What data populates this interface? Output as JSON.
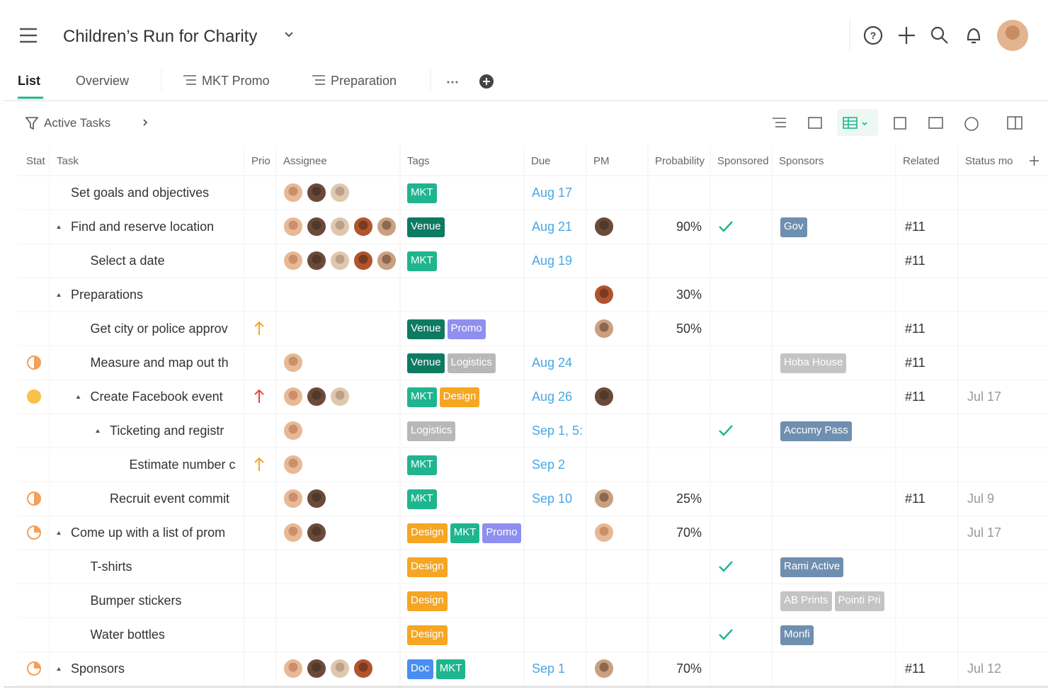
{
  "header": {
    "title": "Children’s Run for Charity"
  },
  "tabs": [
    "List",
    "Overview",
    "MKT Promo",
    "Preparation"
  ],
  "filter": "Active Tasks",
  "table": {
    "columns": [
      "Stat",
      "Task",
      "Prio",
      "Assignee",
      "Tags",
      "Due",
      "PM",
      "Probability",
      "Sponsored",
      "Sponsors",
      "Related",
      "Status mo"
    ],
    "rows": [
      {
        "task": "Set goals and objectives",
        "level": 1,
        "expand": false,
        "assignees": 3,
        "tags": [
          {
            "text": "MKT",
            "color": "#1fb58f"
          }
        ],
        "due": "Aug 17"
      },
      {
        "task": "Find and reserve location",
        "level": 1,
        "expand": true,
        "assignees": 5,
        "tags": [
          {
            "text": "Venue",
            "color": "#0e7a62"
          }
        ],
        "due": "Aug 21",
        "pm": true,
        "probability": "90%",
        "sponsored": true,
        "sponsors": [
          {
            "text": "Gov",
            "color": "#6f8fb0"
          }
        ],
        "related": "#11"
      },
      {
        "task": "Select a date",
        "level": 2,
        "expand": false,
        "assignees": 5,
        "tags": [
          {
            "text": "MKT",
            "color": "#1fb58f"
          }
        ],
        "due": "Aug 19",
        "related": "#11"
      },
      {
        "task": "Preparations",
        "level": 1,
        "expand": true,
        "pm": true,
        "probability": "30%"
      },
      {
        "task": "Get city or police approv",
        "level": 2,
        "expand": false,
        "priority": "#f5a623",
        "tags": [
          {
            "text": "Venue",
            "color": "#0e7a62"
          },
          {
            "text": "Promo",
            "color": "#8f8ff0"
          }
        ],
        "pm": true,
        "probability": "50%",
        "related": "#11"
      },
      {
        "task": "Measure and map out th",
        "level": 2,
        "expand": false,
        "status": 0.5,
        "assignees": 1,
        "tags": [
          {
            "text": "Venue",
            "color": "#0e7a62"
          },
          {
            "text": "Logistics",
            "color": "#b8b8b8"
          }
        ],
        "due": "Aug 24",
        "sponsors": [
          {
            "text": "Hoba House",
            "color": "#c4c4c4"
          }
        ],
        "related": "#11"
      },
      {
        "task": "Create Facebook event",
        "level": 2,
        "expand": true,
        "status": 1,
        "priority": "#e8463d",
        "assignees": 3,
        "tags": [
          {
            "text": "MKT",
            "color": "#1fb58f"
          },
          {
            "text": "Design",
            "color": "#f5a623"
          }
        ],
        "due": "Aug 26",
        "pm": true,
        "related": "#11",
        "status_modified": "Jul 17"
      },
      {
        "task": "Ticketing and registr",
        "level": 3,
        "expand": true,
        "assignees": 1,
        "tags": [
          {
            "text": "Logistics",
            "color": "#b8b8b8"
          }
        ],
        "due": "Sep 1, 5:",
        "sponsored": true,
        "sponsors": [
          {
            "text": "Accumy Pass",
            "color": "#6f8fb0"
          }
        ]
      },
      {
        "task": "Estimate number c",
        "level": 4,
        "expand": false,
        "priority": "#f5a623",
        "assignees": 1,
        "tags": [
          {
            "text": "MKT",
            "color": "#1fb58f"
          }
        ],
        "due": "Sep 2"
      },
      {
        "task": "Recruit event commit",
        "level": 3,
        "expand": false,
        "status": 0.5,
        "assignees": 2,
        "tags": [
          {
            "text": "MKT",
            "color": "#1fb58f"
          }
        ],
        "due": "Sep 10",
        "pm": true,
        "probability": "25%",
        "related": "#11",
        "status_modified": "Jul 9"
      },
      {
        "task": "Come up with a list of prom",
        "level": 1,
        "expand": true,
        "status": 0.25,
        "assignees": 2,
        "tags": [
          {
            "text": "Design",
            "color": "#f5a623"
          },
          {
            "text": "MKT",
            "color": "#1fb58f"
          },
          {
            "text": "Promo",
            "color": "#8f8ff0"
          }
        ],
        "pm": true,
        "probability": "70%",
        "status_modified": "Jul 17"
      },
      {
        "task": "T-shirts",
        "level": 2,
        "expand": false,
        "tags": [
          {
            "text": "Design",
            "color": "#f5a623"
          }
        ],
        "sponsored": true,
        "sponsors": [
          {
            "text": "Rami Active",
            "color": "#6f8fb0"
          }
        ]
      },
      {
        "task": "Bumper stickers",
        "level": 2,
        "expand": false,
        "tags": [
          {
            "text": "Design",
            "color": "#f5a623"
          }
        ],
        "sponsors": [
          {
            "text": "AB Prints",
            "color": "#c4c4c4"
          },
          {
            "text": "Pointi Pri",
            "color": "#c4c4c4"
          }
        ]
      },
      {
        "task": "Water bottles",
        "level": 2,
        "expand": false,
        "tags": [
          {
            "text": "Design",
            "color": "#f5a623"
          }
        ],
        "sponsored": true,
        "sponsors": [
          {
            "text": "Monfi",
            "color": "#6f8fb0"
          }
        ]
      },
      {
        "task": "Sponsors",
        "level": 1,
        "expand": true,
        "status": 0.25,
        "assignees": 4,
        "tags": [
          {
            "text": "Doc",
            "color": "#4a8ef0"
          },
          {
            "text": "MKT",
            "color": "#1fb58f"
          }
        ],
        "due": "Sep 1",
        "pm": true,
        "probability": "70%",
        "related": "#11",
        "status_modified": "Jul 12"
      }
    ]
  }
}
